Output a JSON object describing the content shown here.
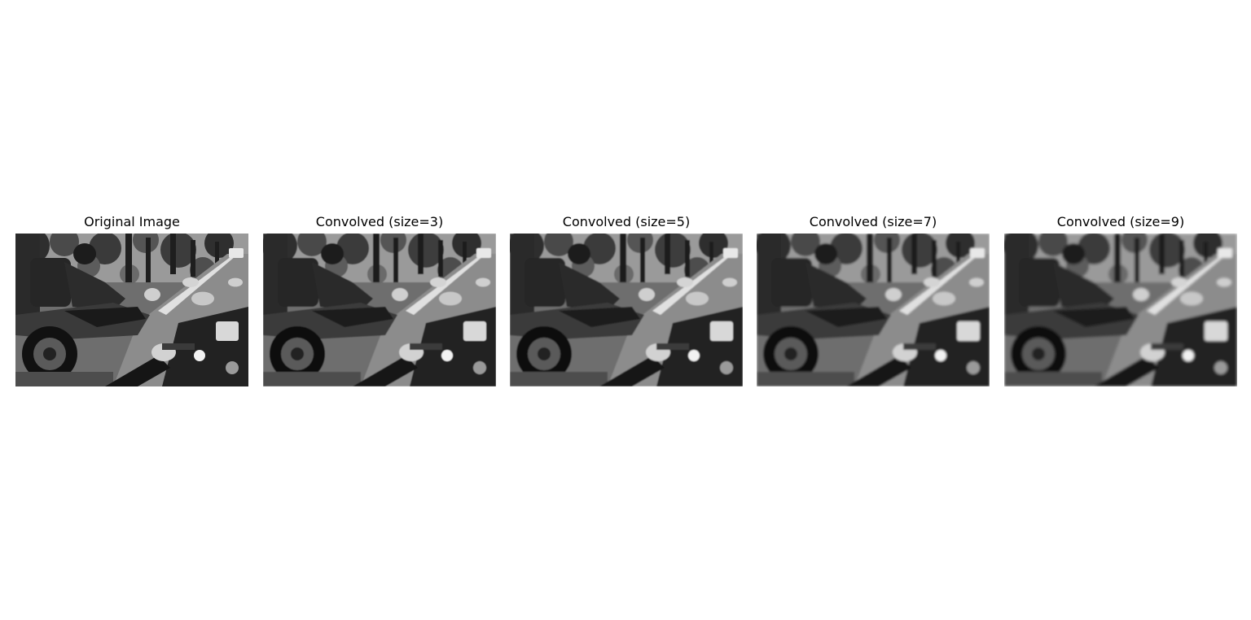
{
  "panels": [
    {
      "title": "Original Image",
      "blur": 0
    },
    {
      "title": "Convolved (size=3)",
      "blur": 0.5
    },
    {
      "title": "Convolved (size=5)",
      "blur": 0.9
    },
    {
      "title": "Convolved (size=7)",
      "blur": 1.3
    },
    {
      "title": "Convolved (size=9)",
      "blur": 1.7
    }
  ]
}
